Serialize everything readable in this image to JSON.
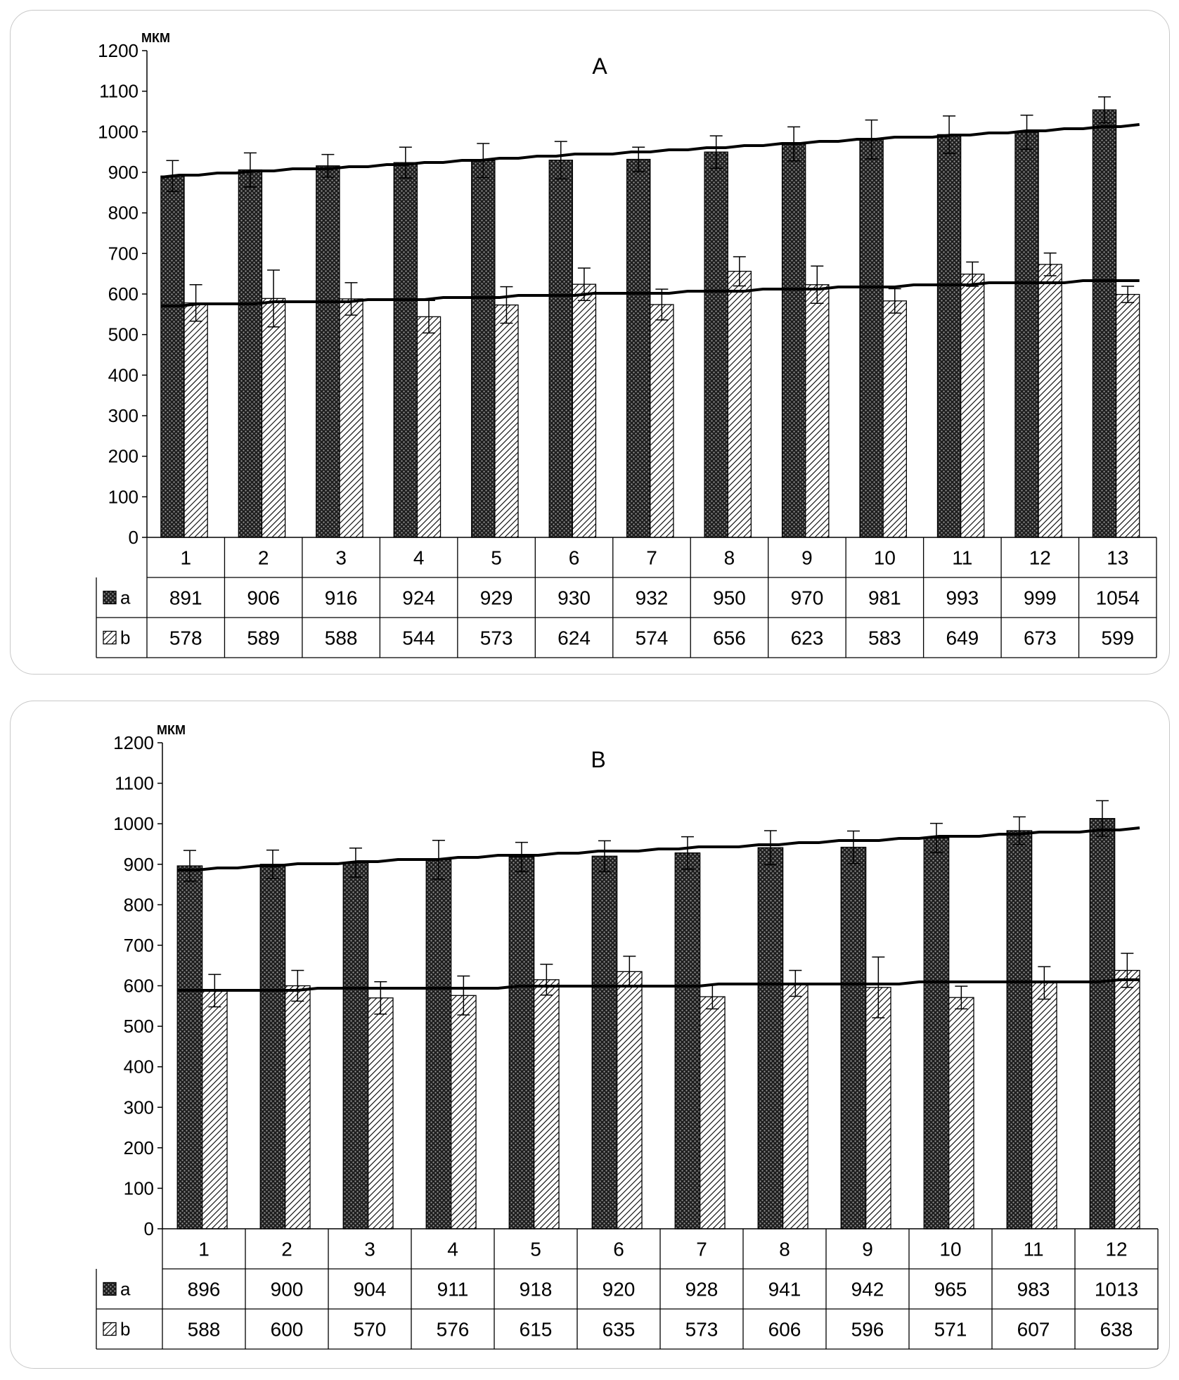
{
  "chart_data": [
    {
      "type": "bar",
      "title": "A",
      "unit_label": "мкм",
      "ylim": [
        0,
        1200
      ],
      "yticks": [
        0,
        100,
        200,
        300,
        400,
        500,
        600,
        700,
        800,
        900,
        1000,
        1100,
        1200
      ],
      "categories": [
        "1",
        "2",
        "3",
        "4",
        "5",
        "6",
        "7",
        "8",
        "9",
        "10",
        "11",
        "12",
        "13"
      ],
      "series": [
        {
          "name": "a",
          "pattern": "dark-dotted",
          "values": [
            891,
            906,
            916,
            924,
            929,
            930,
            932,
            950,
            970,
            981,
            993,
            999,
            1054
          ],
          "errors": [
            38,
            42,
            28,
            38,
            42,
            46,
            30,
            40,
            42,
            48,
            46,
            42,
            32
          ],
          "trend": [
            889,
            1016
          ]
        },
        {
          "name": "b",
          "pattern": "diagonal-hatch",
          "values": [
            578,
            589,
            588,
            544,
            573,
            624,
            574,
            656,
            623,
            583,
            649,
            673,
            599
          ],
          "errors": [
            45,
            70,
            40,
            40,
            45,
            40,
            38,
            36,
            46,
            30,
            30,
            28,
            20
          ],
          "trend": [
            571,
            635
          ]
        }
      ],
      "legend_placement": "data-table-below",
      "grid": false,
      "trend_lines": true
    },
    {
      "type": "bar",
      "title": "B",
      "unit_label": "мкм",
      "ylim": [
        0,
        1200
      ],
      "yticks": [
        0,
        100,
        200,
        300,
        400,
        500,
        600,
        700,
        800,
        900,
        1000,
        1100,
        1200
      ],
      "categories": [
        "1",
        "2",
        "3",
        "4",
        "5",
        "6",
        "7",
        "8",
        "9",
        "10",
        "11",
        "12"
      ],
      "series": [
        {
          "name": "a",
          "pattern": "dark-dotted",
          "values": [
            896,
            900,
            904,
            911,
            918,
            920,
            928,
            941,
            942,
            965,
            983,
            1013
          ],
          "errors": [
            38,
            35,
            36,
            48,
            36,
            38,
            40,
            42,
            40,
            36,
            34,
            44
          ],
          "trend": [
            886,
            988
          ]
        },
        {
          "name": "b",
          "pattern": "diagonal-hatch",
          "values": [
            588,
            600,
            570,
            576,
            615,
            635,
            573,
            606,
            596,
            571,
            607,
            638
          ],
          "errors": [
            40,
            38,
            40,
            48,
            38,
            38,
            30,
            32,
            75,
            28,
            40,
            42
          ],
          "trend": [
            588,
            613
          ]
        }
      ],
      "legend_placement": "data-table-below",
      "grid": false,
      "trend_lines": true
    }
  ]
}
